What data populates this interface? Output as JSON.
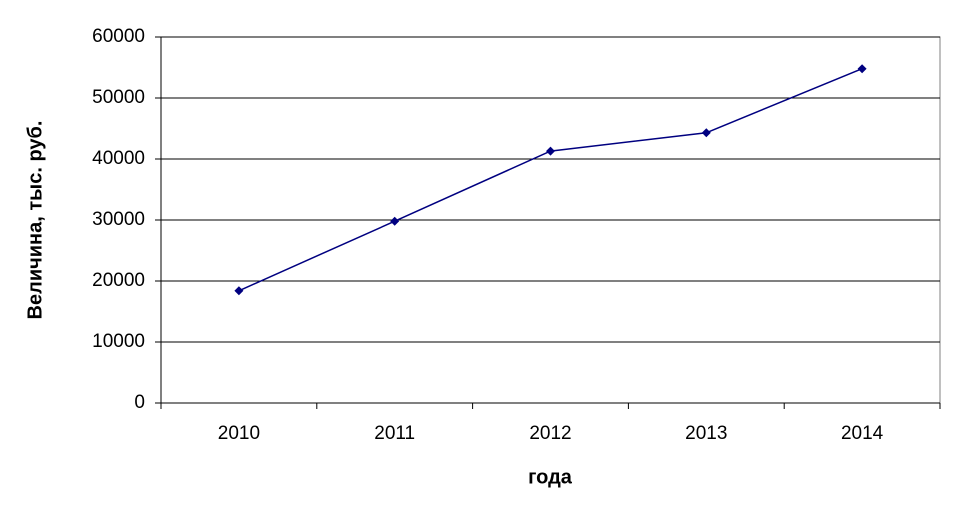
{
  "chart_data": {
    "type": "line",
    "x_label": "года",
    "y_label": "Величина, тыс. руб.",
    "categories": [
      "2010",
      "2011",
      "2012",
      "2013",
      "2014"
    ],
    "series": [
      {
        "name": "Величина",
        "color": "#000080",
        "values": [
          18400,
          29800,
          41300,
          44300,
          54800
        ]
      }
    ],
    "ylim": [
      0,
      60000
    ],
    "yticks": [
      0,
      10000,
      20000,
      30000,
      40000,
      50000,
      60000
    ],
    "grid": true
  }
}
